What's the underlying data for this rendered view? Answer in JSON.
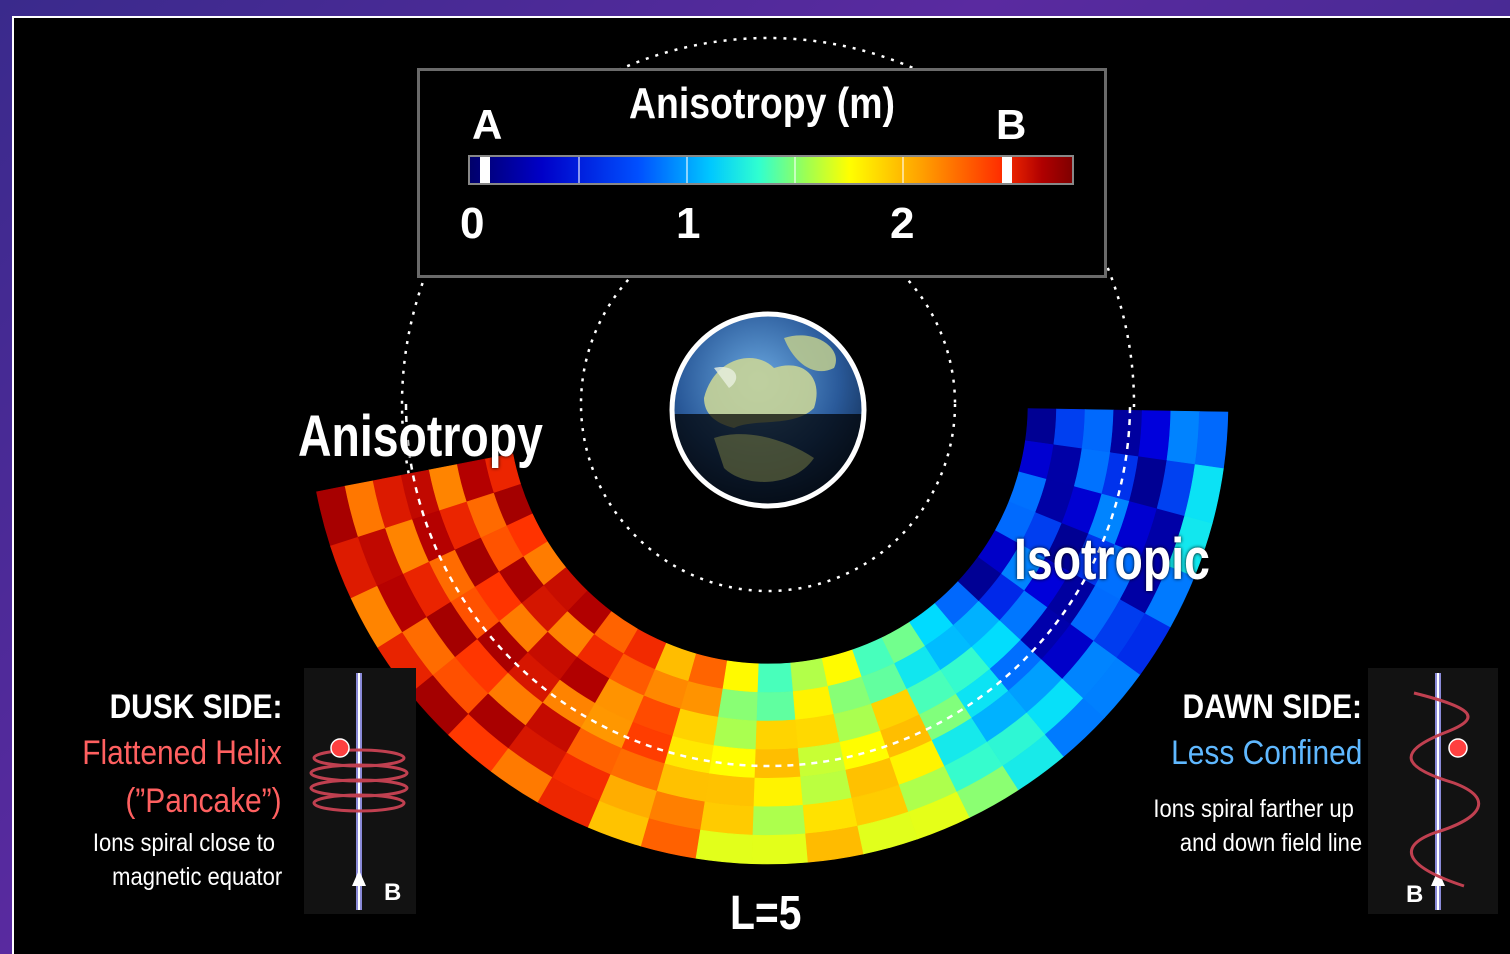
{
  "legend": {
    "title": "Anisotropy (m)",
    "label_a": "A",
    "label_b": "B",
    "scale_min": "0",
    "scale_mid": "1",
    "scale_max": "2"
  },
  "region_labels": {
    "anisotropy": "Anisotropy",
    "isotropic": "Isotropic"
  },
  "dusk": {
    "title": "DUSK SIDE:",
    "subtitle_line1": "Flattened Helix",
    "subtitle_line2": "(”Pancake”)",
    "note_line1": "Ions spiral close to",
    "note_line2": "magnetic equator",
    "field_label": "B",
    "subtitle_color": "#ff6060"
  },
  "dawn": {
    "title": "DAWN SIDE:",
    "subtitle": "Less Confined",
    "note_line1": "Ions spiral farther up",
    "note_line2": "and down field line",
    "field_label": "B",
    "subtitle_color": "#5fb8ff"
  },
  "shell_label": "L=5"
}
